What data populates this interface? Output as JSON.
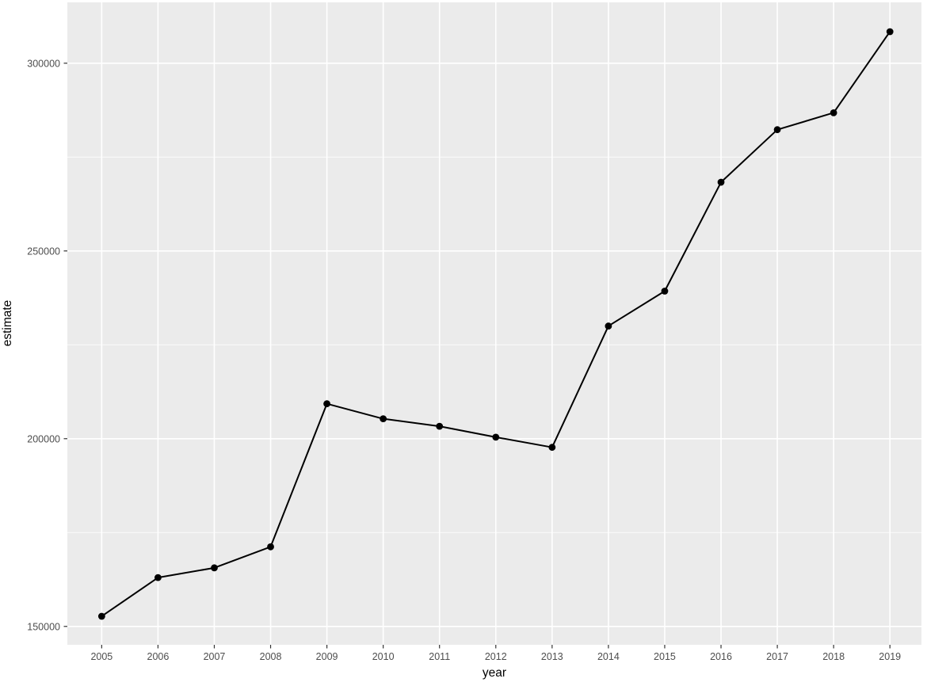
{
  "figure": {
    "kind": "ggplot2 line chart with points",
    "background": "#FFFFFF"
  },
  "chart_data": {
    "type": "line",
    "title": "",
    "xlabel": "year",
    "ylabel": "estimate",
    "x": [
      2005,
      2006,
      2007,
      2008,
      2009,
      2010,
      2011,
      2012,
      2013,
      2014,
      2015,
      2016,
      2017,
      2018,
      2019
    ],
    "series": [
      {
        "name": "estimate",
        "values": [
          152700,
          163000,
          165600,
          171200,
          209300,
          205300,
          203300,
          200400,
          197700,
          230000,
          239300,
          268300,
          282300,
          286800,
          308400
        ]
      }
    ],
    "xticks": [
      2005,
      2006,
      2007,
      2008,
      2009,
      2010,
      2011,
      2012,
      2013,
      2014,
      2015,
      2016,
      2017,
      2018,
      2019
    ],
    "yticks": [
      150000,
      200000,
      250000,
      300000
    ],
    "yticks_minor": [
      175000,
      225000,
      275000
    ],
    "xlim": [
      2004.39,
      2019.56
    ],
    "ylim": [
      145100,
      316200
    ],
    "grid": "white major gridlines x+y, white minor gridlines y only",
    "legend": "none",
    "markers": "filled black circles",
    "colors": {
      "panel_bg": "#EBEBEB",
      "grid": "#FFFFFF",
      "line": "#000000",
      "point": "#000000",
      "axis_text": "#4D4D4D",
      "axis_title": "#000000",
      "tick_mark": "#333333"
    }
  }
}
